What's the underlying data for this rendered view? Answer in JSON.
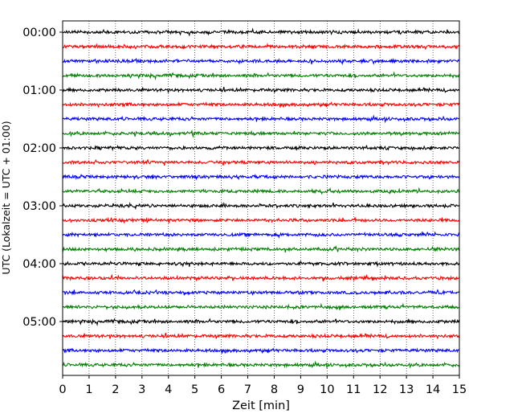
{
  "chart_data": {
    "type": "line",
    "title": "",
    "xlabel": "Zeit  [min]",
    "ylabel": "UTC (Lokalzeit = UTC + 01:00)",
    "xlim": [
      0,
      15
    ],
    "x_ticks": [
      "0",
      "1",
      "2",
      "3",
      "4",
      "5",
      "6",
      "7",
      "8",
      "9",
      "10",
      "11",
      "12",
      "13",
      "14",
      "15"
    ],
    "y_ticks": [
      "00:00",
      "01:00",
      "02:00",
      "03:00",
      "04:00",
      "05:00"
    ],
    "row_interval_min": 15,
    "rows_count": 24,
    "grid": "vertical dotted at each minute",
    "trace_colors": [
      "#000000",
      "#ff0000",
      "#0000ff",
      "#008000"
    ],
    "legend": "none"
  }
}
